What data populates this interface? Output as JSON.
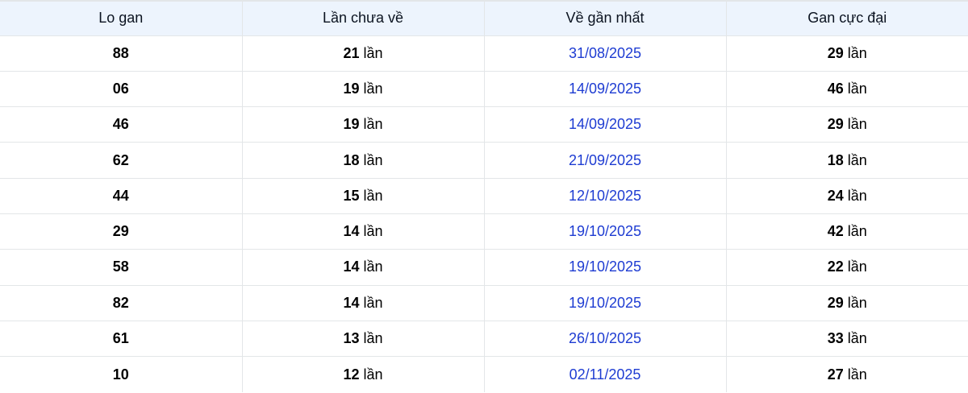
{
  "table": {
    "columns": [
      {
        "key": "lo_gan",
        "label": "Lo gan"
      },
      {
        "key": "lan_chua_ve",
        "label": "Lần chưa về"
      },
      {
        "key": "ve_gan_nhat",
        "label": "Về gần nhất"
      },
      {
        "key": "gan_cuc_dai",
        "label": "Gan cực đại"
      }
    ],
    "unit_suffix": "lần",
    "rows": [
      {
        "lo_gan": "88",
        "lan_chua_ve": "21",
        "ve_gan_nhat": "31/08/2025",
        "gan_cuc_dai": "29"
      },
      {
        "lo_gan": "06",
        "lan_chua_ve": "19",
        "ve_gan_nhat": "14/09/2025",
        "gan_cuc_dai": "46"
      },
      {
        "lo_gan": "46",
        "lan_chua_ve": "19",
        "ve_gan_nhat": "14/09/2025",
        "gan_cuc_dai": "29"
      },
      {
        "lo_gan": "62",
        "lan_chua_ve": "18",
        "ve_gan_nhat": "21/09/2025",
        "gan_cuc_dai": "18"
      },
      {
        "lo_gan": "44",
        "lan_chua_ve": "15",
        "ve_gan_nhat": "12/10/2025",
        "gan_cuc_dai": "24"
      },
      {
        "lo_gan": "29",
        "lan_chua_ve": "14",
        "ve_gan_nhat": "19/10/2025",
        "gan_cuc_dai": "42"
      },
      {
        "lo_gan": "58",
        "lan_chua_ve": "14",
        "ve_gan_nhat": "19/10/2025",
        "gan_cuc_dai": "22"
      },
      {
        "lo_gan": "82",
        "lan_chua_ve": "14",
        "ve_gan_nhat": "19/10/2025",
        "gan_cuc_dai": "29"
      },
      {
        "lo_gan": "61",
        "lan_chua_ve": "13",
        "ve_gan_nhat": "26/10/2025",
        "gan_cuc_dai": "33"
      },
      {
        "lo_gan": "10",
        "lan_chua_ve": "12",
        "ve_gan_nhat": "02/11/2025",
        "gan_cuc_dai": "27"
      }
    ]
  },
  "colors": {
    "header_bg": "#edf4fd",
    "border": "#e3e6e8",
    "date_link": "#1e3cd2",
    "text": "#000000"
  }
}
